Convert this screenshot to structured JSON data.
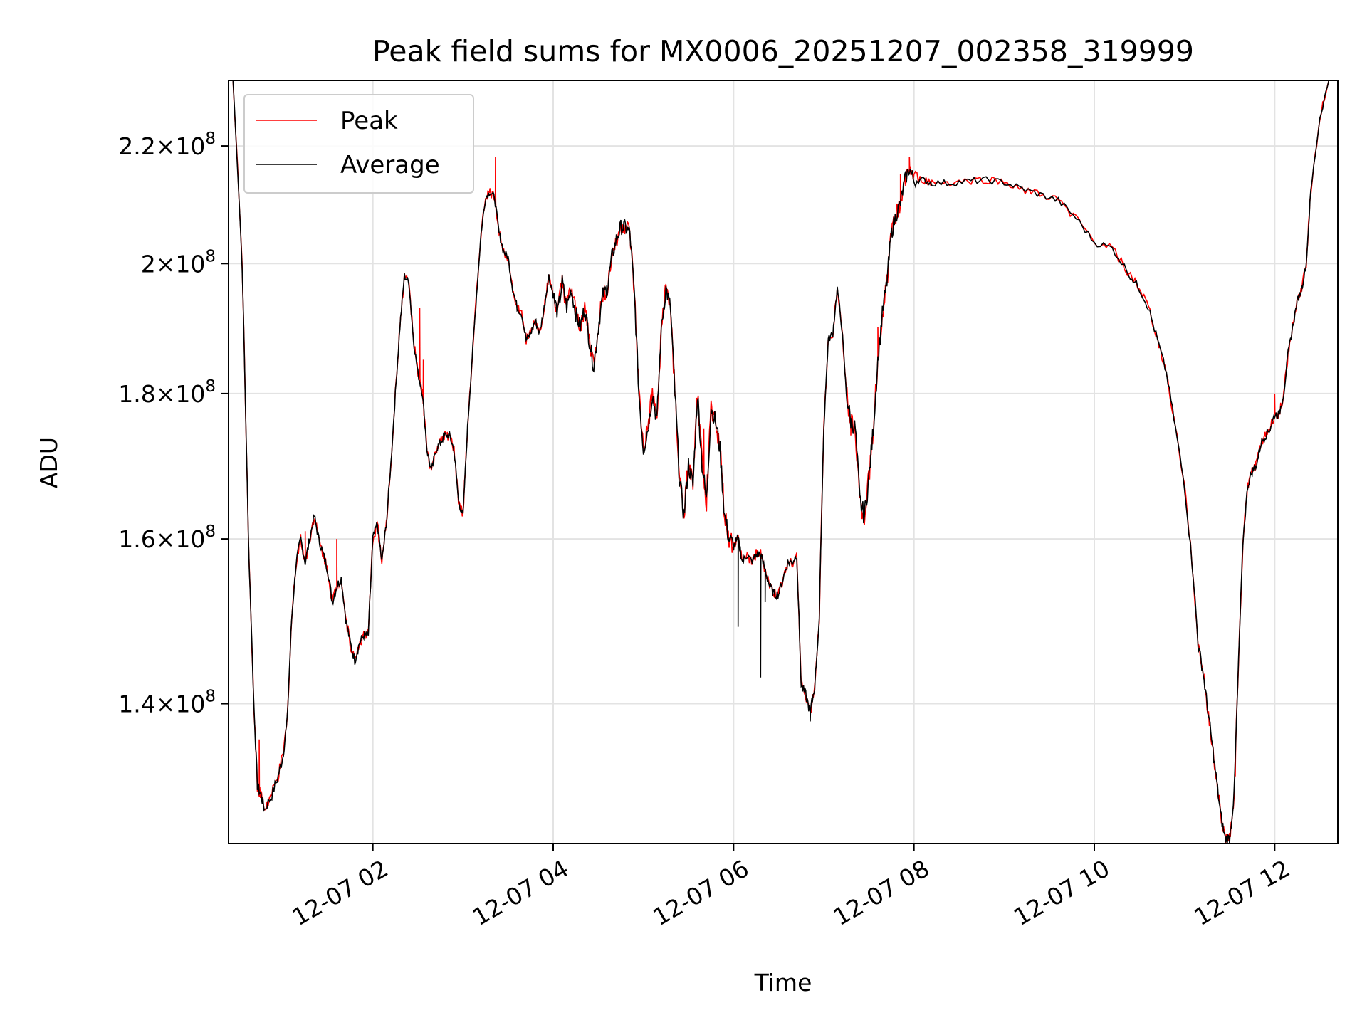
{
  "chart_data": {
    "type": "line",
    "title": "Peak field sums for MX0006_20251207_002358_319999",
    "xlabel": "Time",
    "ylabel": "ADU",
    "x_unit": "hours since 2025-12-07 00:00",
    "xlim": [
      0.4,
      12.7
    ],
    "ylim": [
      125000000,
      232000000
    ],
    "y_scale": "log",
    "grid": true,
    "legend_position": "top-left",
    "x_ticks": [
      {
        "value": 2,
        "label": "12-07 02"
      },
      {
        "value": 4,
        "label": "12-07 04"
      },
      {
        "value": 6,
        "label": "12-07 06"
      },
      {
        "value": 8,
        "label": "12-07 08"
      },
      {
        "value": 10,
        "label": "12-07 10"
      },
      {
        "value": 12,
        "label": "12-07 12"
      }
    ],
    "y_ticks": [
      {
        "value": 140000000,
        "mantissa": "1.4",
        "exp": "8"
      },
      {
        "value": 160000000,
        "mantissa": "1.6",
        "exp": "8"
      },
      {
        "value": 180000000,
        "mantissa": "1.8",
        "exp": "8"
      },
      {
        "value": 200000000,
        "mantissa": "2",
        "exp": "8"
      },
      {
        "value": 220000000,
        "mantissa": "2.2",
        "exp": "8"
      }
    ],
    "average_points": [
      [
        0.45,
        232
      ],
      [
        0.55,
        200
      ],
      [
        0.62,
        160
      ],
      [
        0.68,
        140
      ],
      [
        0.72,
        131
      ],
      [
        0.76,
        130
      ],
      [
        0.8,
        128.5
      ],
      [
        0.88,
        130
      ],
      [
        0.95,
        132
      ],
      [
        1.0,
        134
      ],
      [
        1.05,
        138
      ],
      [
        1.1,
        150
      ],
      [
        1.15,
        157
      ],
      [
        1.2,
        160
      ],
      [
        1.25,
        157
      ],
      [
        1.3,
        160
      ],
      [
        1.35,
        163
      ],
      [
        1.4,
        160
      ],
      [
        1.45,
        158
      ],
      [
        1.5,
        156
      ],
      [
        1.55,
        152
      ],
      [
        1.6,
        154
      ],
      [
        1.65,
        155
      ],
      [
        1.7,
        150
      ],
      [
        1.75,
        147
      ],
      [
        1.8,
        145
      ],
      [
        1.85,
        147
      ],
      [
        1.9,
        148
      ],
      [
        1.95,
        148
      ],
      [
        2.0,
        160
      ],
      [
        2.05,
        162
      ],
      [
        2.1,
        157
      ],
      [
        2.15,
        162
      ],
      [
        2.2,
        170
      ],
      [
        2.25,
        180
      ],
      [
        2.3,
        190
      ],
      [
        2.35,
        198
      ],
      [
        2.4,
        197
      ],
      [
        2.45,
        188
      ],
      [
        2.5,
        183
      ],
      [
        2.55,
        180
      ],
      [
        2.6,
        172
      ],
      [
        2.65,
        169
      ],
      [
        2.7,
        172
      ],
      [
        2.75,
        173
      ],
      [
        2.8,
        174
      ],
      [
        2.85,
        174
      ],
      [
        2.9,
        172
      ],
      [
        2.95,
        165
      ],
      [
        3.0,
        163
      ],
      [
        3.05,
        175
      ],
      [
        3.1,
        185
      ],
      [
        3.15,
        195
      ],
      [
        3.2,
        205
      ],
      [
        3.25,
        211
      ],
      [
        3.3,
        212
      ],
      [
        3.35,
        211
      ],
      [
        3.4,
        205
      ],
      [
        3.45,
        202
      ],
      [
        3.5,
        201
      ],
      [
        3.55,
        196
      ],
      [
        3.6,
        193
      ],
      [
        3.65,
        192
      ],
      [
        3.7,
        188
      ],
      [
        3.75,
        189
      ],
      [
        3.8,
        191
      ],
      [
        3.85,
        189
      ],
      [
        3.9,
        193
      ],
      [
        3.95,
        198
      ],
      [
        4.0,
        195
      ],
      [
        4.05,
        192
      ],
      [
        4.1,
        197
      ],
      [
        4.15,
        193
      ],
      [
        4.2,
        196
      ],
      [
        4.25,
        192
      ],
      [
        4.3,
        190
      ],
      [
        4.35,
        193
      ],
      [
        4.4,
        188
      ],
      [
        4.45,
        184
      ],
      [
        4.5,
        190
      ],
      [
        4.55,
        195
      ],
      [
        4.6,
        196
      ],
      [
        4.65,
        201
      ],
      [
        4.7,
        204
      ],
      [
        4.75,
        206
      ],
      [
        4.8,
        206
      ],
      [
        4.85,
        205
      ],
      [
        4.9,
        195
      ],
      [
        4.95,
        180
      ],
      [
        5.0,
        172
      ],
      [
        5.05,
        175
      ],
      [
        5.1,
        180
      ],
      [
        5.15,
        176
      ],
      [
        5.2,
        190
      ],
      [
        5.25,
        196
      ],
      [
        5.3,
        193
      ],
      [
        5.35,
        180
      ],
      [
        5.4,
        168
      ],
      [
        5.45,
        163
      ],
      [
        5.5,
        170
      ],
      [
        5.55,
        167
      ],
      [
        5.6,
        180
      ],
      [
        5.65,
        170
      ],
      [
        5.7,
        165
      ],
      [
        5.75,
        178
      ],
      [
        5.8,
        176
      ],
      [
        5.85,
        172
      ],
      [
        5.9,
        163
      ],
      [
        5.95,
        160
      ],
      [
        6.0,
        159
      ],
      [
        6.05,
        160
      ],
      [
        6.1,
        157
      ],
      [
        6.15,
        158
      ],
      [
        6.2,
        157
      ],
      [
        6.25,
        158
      ],
      [
        6.3,
        158
      ],
      [
        6.35,
        156
      ],
      [
        6.4,
        154
      ],
      [
        6.45,
        153
      ],
      [
        6.5,
        153
      ],
      [
        6.55,
        155
      ],
      [
        6.6,
        157
      ],
      [
        6.65,
        157
      ],
      [
        6.7,
        158
      ],
      [
        6.75,
        142
      ],
      [
        6.8,
        141
      ],
      [
        6.85,
        139
      ],
      [
        6.9,
        142
      ],
      [
        6.95,
        150
      ],
      [
        7.0,
        175
      ],
      [
        7.05,
        188
      ],
      [
        7.1,
        189
      ],
      [
        7.15,
        196
      ],
      [
        7.2,
        190
      ],
      [
        7.25,
        180
      ],
      [
        7.3,
        176
      ],
      [
        7.35,
        175
      ],
      [
        7.4,
        165
      ],
      [
        7.45,
        163
      ],
      [
        7.5,
        168
      ],
      [
        7.55,
        175
      ],
      [
        7.6,
        185
      ],
      [
        7.65,
        192
      ],
      [
        7.7,
        197
      ],
      [
        7.75,
        205
      ],
      [
        7.8,
        208
      ],
      [
        7.85,
        210
      ],
      [
        7.9,
        214
      ],
      [
        7.95,
        216
      ],
      [
        8.0,
        214
      ],
      [
        8.1,
        214
      ],
      [
        8.2,
        213.5
      ],
      [
        8.4,
        213.5
      ],
      [
        8.6,
        213.8
      ],
      [
        8.8,
        214
      ],
      [
        9.0,
        213.6
      ],
      [
        9.2,
        212.5
      ],
      [
        9.4,
        211.5
      ],
      [
        9.6,
        210.5
      ],
      [
        9.8,
        207.5
      ],
      [
        10.0,
        203.5
      ],
      [
        10.2,
        202.5
      ],
      [
        10.4,
        198
      ],
      [
        10.5,
        196
      ],
      [
        10.6,
        193
      ],
      [
        10.7,
        188
      ],
      [
        10.8,
        183
      ],
      [
        10.9,
        175
      ],
      [
        11.0,
        167
      ],
      [
        11.1,
        155
      ],
      [
        11.15,
        147
      ],
      [
        11.2,
        144
      ],
      [
        11.25,
        140
      ],
      [
        11.3,
        136
      ],
      [
        11.35,
        132
      ],
      [
        11.4,
        128
      ],
      [
        11.45,
        125.5
      ],
      [
        11.5,
        125.5
      ],
      [
        11.55,
        130
      ],
      [
        11.6,
        145
      ],
      [
        11.65,
        160
      ],
      [
        11.7,
        167
      ],
      [
        11.75,
        169
      ],
      [
        11.8,
        170
      ],
      [
        11.85,
        173
      ],
      [
        11.9,
        174
      ],
      [
        11.95,
        175
      ],
      [
        12.0,
        177
      ],
      [
        12.05,
        177
      ],
      [
        12.1,
        180
      ],
      [
        12.15,
        186
      ],
      [
        12.2,
        190
      ],
      [
        12.25,
        194
      ],
      [
        12.3,
        196
      ],
      [
        12.35,
        200
      ],
      [
        12.4,
        212
      ],
      [
        12.5,
        225
      ],
      [
        12.6,
        232
      ]
    ],
    "peak_spikes": [
      [
        0.74,
        136
      ],
      [
        1.25,
        161
      ],
      [
        1.6,
        160
      ],
      [
        2.52,
        193
      ],
      [
        2.56,
        185
      ],
      [
        3.36,
        218
      ],
      [
        5.67,
        175
      ],
      [
        7.3,
        174
      ],
      [
        7.6,
        190
      ],
      [
        7.85,
        215
      ],
      [
        7.95,
        218
      ],
      [
        11.56,
        132
      ],
      [
        12.0,
        180
      ]
    ],
    "average_dips": [
      [
        6.05,
        149
      ],
      [
        6.3,
        143
      ],
      [
        6.35,
        152
      ],
      [
        6.85,
        138
      ]
    ],
    "series": [
      {
        "name": "Peak",
        "color": "#ff0000"
      },
      {
        "name": "Average",
        "color": "#000000"
      }
    ]
  }
}
